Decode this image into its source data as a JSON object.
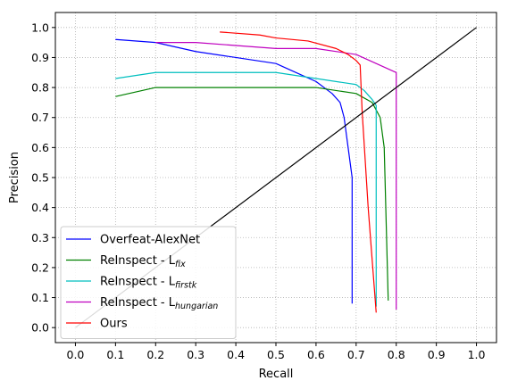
{
  "chart_data": {
    "type": "line",
    "xlabel": "Recall",
    "ylabel": "Precision",
    "xlim": [
      -0.05,
      1.05
    ],
    "ylim": [
      -0.05,
      1.05
    ],
    "x_ticks": [
      0.0,
      0.1,
      0.2,
      0.3,
      0.4,
      0.5,
      0.6,
      0.7,
      0.8,
      0.9,
      1.0
    ],
    "y_ticks": [
      0.0,
      0.1,
      0.2,
      0.3,
      0.4,
      0.5,
      0.6,
      0.7,
      0.8,
      0.9,
      1.0
    ],
    "x_tick_labels": [
      "0.0",
      "0.1",
      "0.2",
      "0.3",
      "0.4",
      "0.5",
      "0.6",
      "0.7",
      "0.8",
      "0.9",
      "1.0"
    ],
    "y_tick_labels": [
      "0.0",
      "0.1",
      "0.2",
      "0.3",
      "0.4",
      "0.5",
      "0.6",
      "0.7",
      "0.8",
      "0.9",
      "1.0"
    ],
    "grid": true,
    "legend_position": "lower-left",
    "series": [
      {
        "name": "Overfeat-AlexNet",
        "color": "#0000ff",
        "x": [
          0.1,
          0.2,
          0.3,
          0.4,
          0.5,
          0.55,
          0.6,
          0.64,
          0.66,
          0.67,
          0.68,
          0.69
        ],
        "y": [
          0.96,
          0.95,
          0.92,
          0.9,
          0.88,
          0.85,
          0.82,
          0.78,
          0.75,
          0.7,
          0.6,
          0.5
        ],
        "x_tail": [
          0.69,
          0.69
        ],
        "y_tail": [
          0.5,
          0.08
        ]
      },
      {
        "name": "ReInspect - L",
        "name_sub": "fix",
        "color": "#008000",
        "x": [
          0.1,
          0.2,
          0.3,
          0.4,
          0.5,
          0.6,
          0.7,
          0.74,
          0.76,
          0.77,
          0.78
        ],
        "y": [
          0.77,
          0.8,
          0.8,
          0.8,
          0.8,
          0.8,
          0.78,
          0.75,
          0.7,
          0.6,
          0.09
        ]
      },
      {
        "name": "ReInspect - L",
        "name_sub": "firstk",
        "color": "#00bfbf",
        "x": [
          0.1,
          0.2,
          0.3,
          0.4,
          0.5,
          0.6,
          0.7,
          0.72,
          0.74,
          0.75,
          0.75
        ],
        "y": [
          0.83,
          0.85,
          0.85,
          0.85,
          0.85,
          0.83,
          0.81,
          0.79,
          0.76,
          0.74,
          0.07
        ]
      },
      {
        "name": "ReInspect - L",
        "name_sub": "hungarian",
        "color": "#bf00bf",
        "x": [
          0.2,
          0.3,
          0.4,
          0.5,
          0.6,
          0.7,
          0.8,
          0.8
        ],
        "y": [
          0.95,
          0.95,
          0.94,
          0.93,
          0.93,
          0.91,
          0.85,
          0.06
        ]
      },
      {
        "name": "Ours",
        "color": "#ff0000",
        "x": [
          0.36,
          0.46,
          0.5,
          0.58,
          0.65,
          0.68,
          0.7,
          0.71,
          0.715,
          0.73,
          0.75
        ],
        "y": [
          0.985,
          0.975,
          0.965,
          0.955,
          0.93,
          0.91,
          0.89,
          0.875,
          0.72,
          0.4,
          0.05
        ]
      },
      {
        "name": "",
        "color": "#000000",
        "x": [
          0.0,
          1.0
        ],
        "y": [
          0.0,
          1.0
        ],
        "in_legend": false
      }
    ]
  }
}
